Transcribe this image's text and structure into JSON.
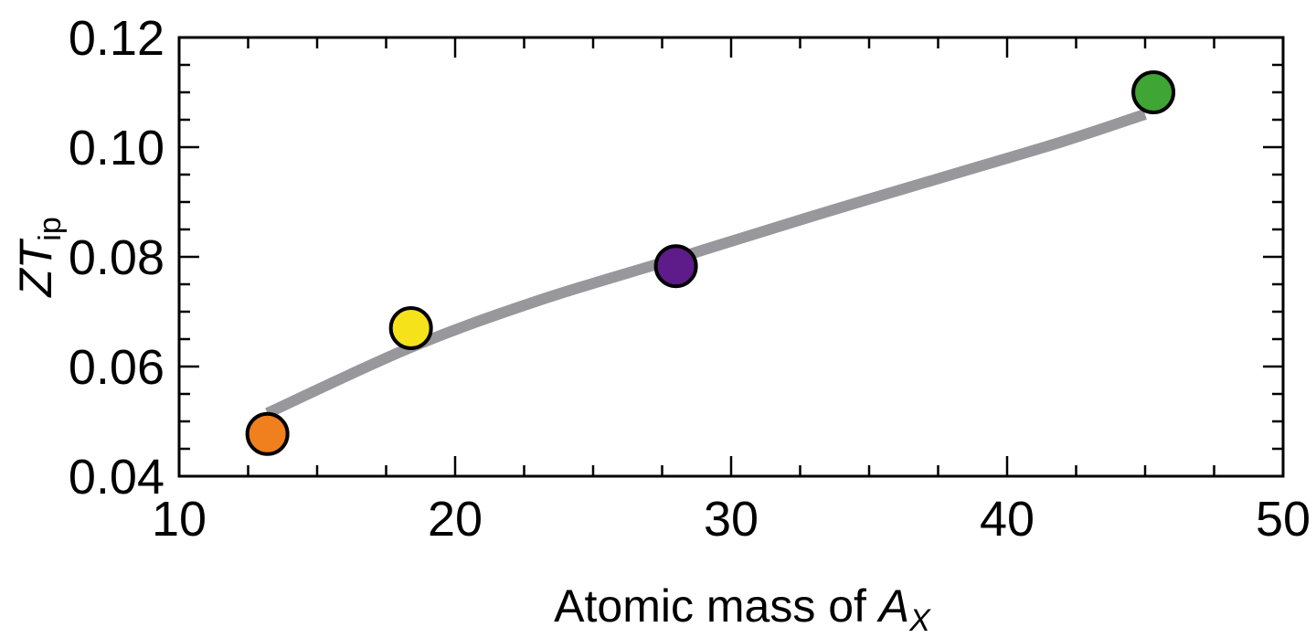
{
  "chart_data": {
    "type": "scatter",
    "title": "",
    "xlabel": "Atomic mass of A_X",
    "xlabel_parts": {
      "main": "Atomic mass of ",
      "italic": "A",
      "subscript": "X"
    },
    "ylabel": "ZT_ip",
    "ylabel_parts": {
      "italic": "ZT",
      "subscript": "ip"
    },
    "xlim": [
      10,
      50
    ],
    "ylim": [
      0.04,
      0.12
    ],
    "x_ticks": [
      10,
      20,
      30,
      40,
      50
    ],
    "x_tick_labels": [
      "10",
      "20",
      "30",
      "40",
      "50"
    ],
    "x_minor_step": 2.5,
    "y_ticks": [
      0.04,
      0.06,
      0.08,
      0.1,
      0.12
    ],
    "y_tick_labels": [
      "0.04",
      "0.06",
      "0.08",
      "0.10",
      "0.12"
    ],
    "y_minor_step": 0.005,
    "grid": false,
    "legend": null,
    "series": [
      {
        "name": "points",
        "type": "scatter",
        "points": [
          {
            "x": 13.2,
            "y": 0.0477,
            "color": "#f07f1e"
          },
          {
            "x": 18.4,
            "y": 0.067,
            "color": "#f5e21b"
          },
          {
            "x": 28.0,
            "y": 0.0783,
            "color": "#5e1b8a"
          },
          {
            "x": 45.3,
            "y": 0.11,
            "color": "#3fa535"
          }
        ]
      },
      {
        "name": "fit",
        "type": "line",
        "color": "#98979c",
        "points": [
          {
            "x": 13.2,
            "y": 0.0515
          },
          {
            "x": 18.4,
            "y": 0.0635
          },
          {
            "x": 23.0,
            "y": 0.072
          },
          {
            "x": 28.0,
            "y": 0.0797
          },
          {
            "x": 33.0,
            "y": 0.0875
          },
          {
            "x": 38.0,
            "y": 0.095
          },
          {
            "x": 42.0,
            "y": 0.101
          },
          {
            "x": 45.0,
            "y": 0.106
          }
        ]
      }
    ]
  }
}
